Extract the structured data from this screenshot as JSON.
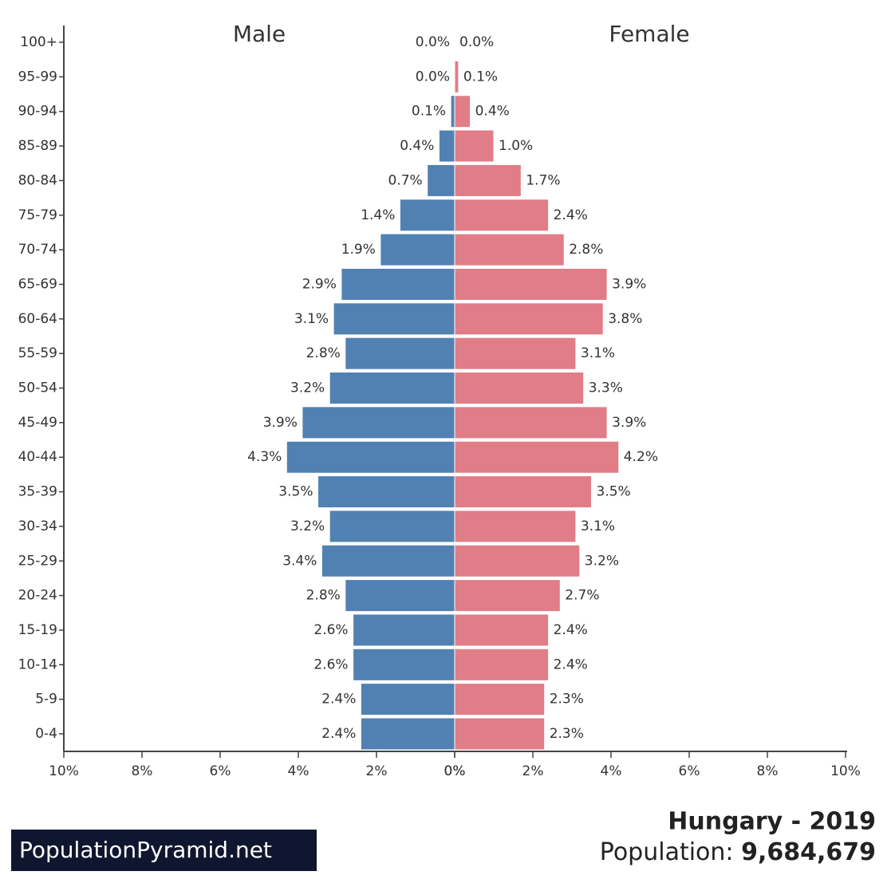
{
  "chart_data": {
    "type": "pyramid",
    "categories": [
      "100+",
      "95-99",
      "90-94",
      "85-89",
      "80-84",
      "75-79",
      "70-74",
      "65-69",
      "60-64",
      "55-59",
      "50-54",
      "45-49",
      "40-44",
      "35-39",
      "30-34",
      "25-29",
      "20-24",
      "15-19",
      "10-14",
      "5-9",
      "0-4"
    ],
    "series": [
      {
        "name": "Male",
        "color": "#5181b2",
        "side": "left",
        "values": [
          0.0,
          0.0,
          0.1,
          0.4,
          0.7,
          1.4,
          1.9,
          2.9,
          3.1,
          2.8,
          3.2,
          3.9,
          4.3,
          3.5,
          3.2,
          3.4,
          2.8,
          2.6,
          2.6,
          2.4,
          2.4
        ],
        "value_labels": [
          "0.0%",
          "0.0%",
          "0.1%",
          "0.4%",
          "0.7%",
          "1.4%",
          "1.9%",
          "2.9%",
          "3.1%",
          "2.8%",
          "3.2%",
          "3.9%",
          "4.3%",
          "3.5%",
          "3.2%",
          "3.4%",
          "2.8%",
          "2.6%",
          "2.6%",
          "2.4%",
          "2.4%"
        ]
      },
      {
        "name": "Female",
        "color": "#e07d87",
        "side": "right",
        "values": [
          0.0,
          0.1,
          0.4,
          1.0,
          1.7,
          2.4,
          2.8,
          3.9,
          3.8,
          3.1,
          3.3,
          3.9,
          4.2,
          3.5,
          3.1,
          3.2,
          2.7,
          2.4,
          2.4,
          2.3,
          2.3
        ],
        "value_labels": [
          "0.0%",
          "0.1%",
          "0.4%",
          "1.0%",
          "1.7%",
          "2.4%",
          "2.8%",
          "3.9%",
          "3.8%",
          "3.1%",
          "3.3%",
          "3.9%",
          "4.2%",
          "3.5%",
          "3.1%",
          "3.2%",
          "2.7%",
          "2.4%",
          "2.4%",
          "2.3%",
          "2.3%"
        ]
      }
    ],
    "xlim": [
      0,
      10
    ],
    "xticks": [
      {
        "value": 0,
        "label": "0%"
      },
      {
        "value": 2,
        "label": "2%"
      },
      {
        "value": 4,
        "label": "4%"
      },
      {
        "value": 6,
        "label": "6%"
      },
      {
        "value": 8,
        "label": "8%"
      },
      {
        "value": 10,
        "label": "10%"
      }
    ]
  },
  "footer": {
    "brand": "PopulationPyramid.net",
    "title": "Hungary - 2019",
    "population_label": "Population:",
    "population": "9,684,679"
  }
}
